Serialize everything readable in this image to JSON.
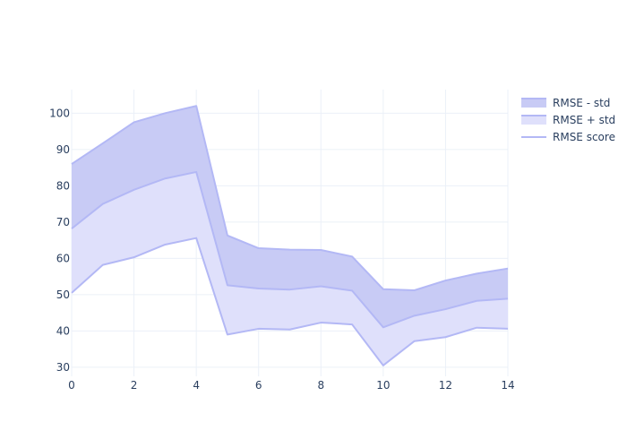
{
  "chart_data": {
    "type": "area",
    "title": "",
    "xlabel": "",
    "ylabel": "",
    "xlim": [
      0,
      14
    ],
    "ylim": [
      27.5,
      106.5
    ],
    "grid": true,
    "legend_position": "top-right",
    "x_ticks": [
      0,
      2,
      4,
      6,
      8,
      10,
      12,
      14
    ],
    "y_ticks": [
      30,
      40,
      50,
      60,
      70,
      80,
      90,
      100
    ],
    "x": [
      0,
      1,
      2,
      3,
      4,
      5,
      6,
      7,
      8,
      9,
      10,
      11,
      12,
      13,
      14
    ],
    "series": [
      {
        "name": "RMSE - std",
        "values": [
          50.5,
          58.2,
          60.3,
          63.8,
          65.6,
          39.0,
          40.6,
          40.4,
          42.3,
          41.8,
          30.5,
          37.2,
          38.3,
          40.9,
          40.6
        ]
      },
      {
        "name": "RMSE + std",
        "values": [
          86.0,
          91.7,
          97.5,
          100.0,
          102.0,
          66.3,
          62.8,
          62.4,
          62.3,
          60.5,
          51.5,
          51.2,
          53.9,
          55.8,
          57.2
        ]
      },
      {
        "name": "RMSE score",
        "values": [
          68.2,
          75.0,
          78.9,
          82.0,
          83.8,
          52.6,
          51.7,
          51.4,
          52.3,
          51.1,
          41.0,
          44.2,
          46.0,
          48.3,
          48.9
        ]
      }
    ],
    "colors": {
      "line": "#b3b8f5",
      "lower_fill": "#dfe0fb",
      "upper_fill": "#c8cbf5",
      "grid": "#ebf0f8",
      "axis_text": "#2a3f5f",
      "zeroline": "#ebf0f8"
    }
  }
}
